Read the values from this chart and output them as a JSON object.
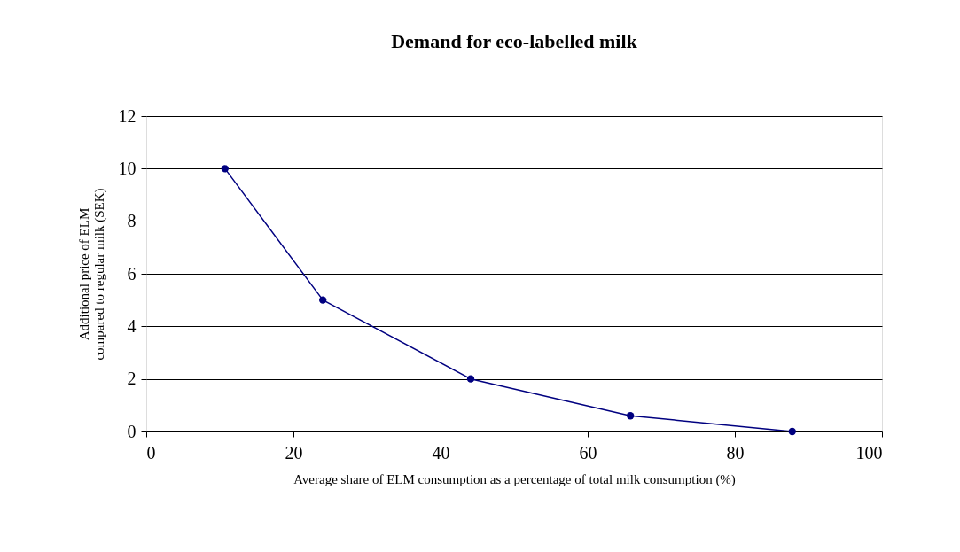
{
  "chart_data": {
    "type": "line",
    "title": "Demand for eco-labelled milk",
    "xlabel": "Average share of ELM consumption as a percentage of total milk consumption (%)",
    "ylabel": "Additional price of ELM\ncompared to regular milk  (SEK)",
    "x": [
      10.7,
      24,
      44.1,
      65.8,
      87.8
    ],
    "series": [
      {
        "color": "#000080",
        "values": [
          10,
          5,
          2,
          0.6,
          0
        ]
      }
    ],
    "xlim": [
      0,
      100
    ],
    "xticks": [
      0,
      20,
      40,
      60,
      80,
      100
    ],
    "ylim": [
      0,
      12
    ],
    "yticks": [
      0,
      2,
      4,
      6,
      8,
      10,
      12
    ],
    "grid": "y",
    "marker": "circle",
    "line_style": "solid",
    "legend": false
  }
}
